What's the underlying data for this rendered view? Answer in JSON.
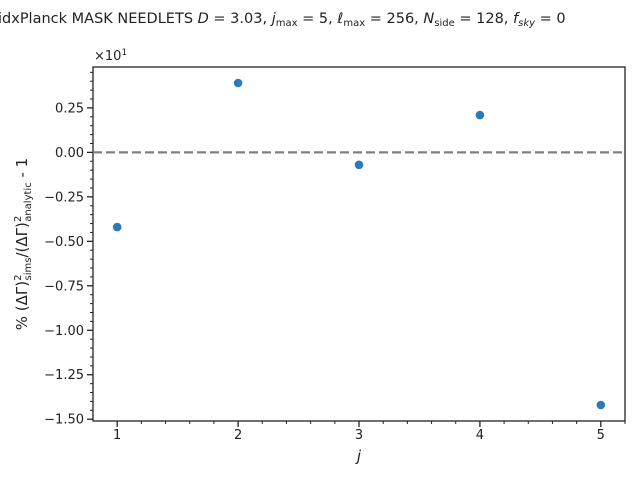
{
  "chart_data": {
    "type": "scatter",
    "title": "idxPlanck MASK NEEDLETS D = 3.03,  j_max = 5,  ℓ_max = 256,  N_side = 128, f_sky = 0",
    "title_parts": {
      "prefix": "idxPlanck MASK NEEDLETS ",
      "D_sym": "D",
      "D_val": " = 3.03,  ",
      "j_sym": "j",
      "j_sub": "max",
      "j_val": " = 5,  ",
      "l_sym": "ℓ",
      "l_sub": "max",
      "l_val": " = 256,  ",
      "n_sym": "N",
      "n_sub": "side",
      "n_val": " = 128,  ",
      "f_sym": "f",
      "f_sub": "sky",
      "f_val": " = 0"
    },
    "xlabel": "j",
    "ylabel": "% (ΔΓ)²_sims/(ΔΓ)²_analytic - 1",
    "ylabel_parts": {
      "pre": "% (ΔΓ)",
      "sup1": "2",
      "sub1": "sims",
      "mid": "/(ΔΓ)",
      "sup2": "2",
      "sub2": "analytic",
      "post": " - 1"
    },
    "offset_text": "×10",
    "offset_exponent": "1",
    "x": [
      1,
      2,
      3,
      4,
      5
    ],
    "y": [
      -0.42,
      0.39,
      -0.07,
      0.21,
      -1.42
    ],
    "xlim": [
      0.8,
      5.2
    ],
    "ylim": [
      -1.51,
      0.48
    ],
    "xticks": [
      1,
      2,
      3,
      4,
      5
    ],
    "xtick_labels": [
      "1",
      "2",
      "3",
      "4",
      "5"
    ],
    "yticks": [
      0.25,
      0.0,
      -0.25,
      -0.5,
      -0.75,
      -1.0,
      -1.25,
      -1.5
    ],
    "ytick_labels": [
      "0.25",
      "0.00",
      "−0.25",
      "−0.50",
      "−0.75",
      "−1.00",
      "−1.25",
      "−1.50"
    ],
    "reference_line": 0,
    "grid": false,
    "legend": "none",
    "colors": {
      "points": "#2b7bba",
      "reference": "#808080",
      "axes": "#222222"
    }
  }
}
